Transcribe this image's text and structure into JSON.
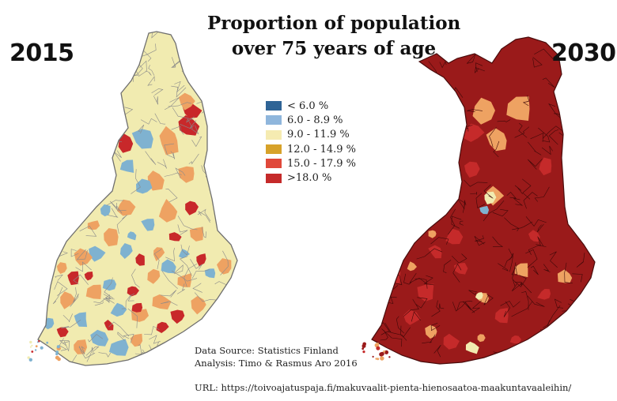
{
  "title_lines": [
    "Proportion of population",
    "over 75 years of age"
  ],
  "maps": [
    {
      "year": "2015",
      "dominant_class": 2
    },
    {
      "year": "2030",
      "dominant_class": 5
    }
  ],
  "legend": [
    {
      "label": "< 6.0 %",
      "color": "#2f6496"
    },
    {
      "label": "6.0 - 8.9 %",
      "color": "#8fb6dc"
    },
    {
      "label": "9.0 - 11.9 %",
      "color": "#f5ebb1"
    },
    {
      "label": "12.0 - 14.9 %",
      "color": "#d7a22a"
    },
    {
      "label": "15.0 - 17.9 %",
      "color": "#e0483a"
    },
    {
      "label": ">18.0 %",
      "color": "#c52a2a"
    }
  ],
  "map_colors": {
    "left_lightblue": "#7fb2d0",
    "left_orange": "#eea262",
    "left_yellow": "#f1ebb0",
    "left_red": "#c8282a",
    "right_darkred": "#9a1a1a",
    "right_red": "#c52a2a",
    "right_orange": "#eea262"
  },
  "source": {
    "line1": "Data Source: Statistics Finland",
    "line2": "Analysis: Timo & Rasmus Aro 2016"
  },
  "url": "URL: https://toivoajatuspaja.fi/makuvaalit-pienta-hienosaatoa-maakuntavaaleihin/"
}
